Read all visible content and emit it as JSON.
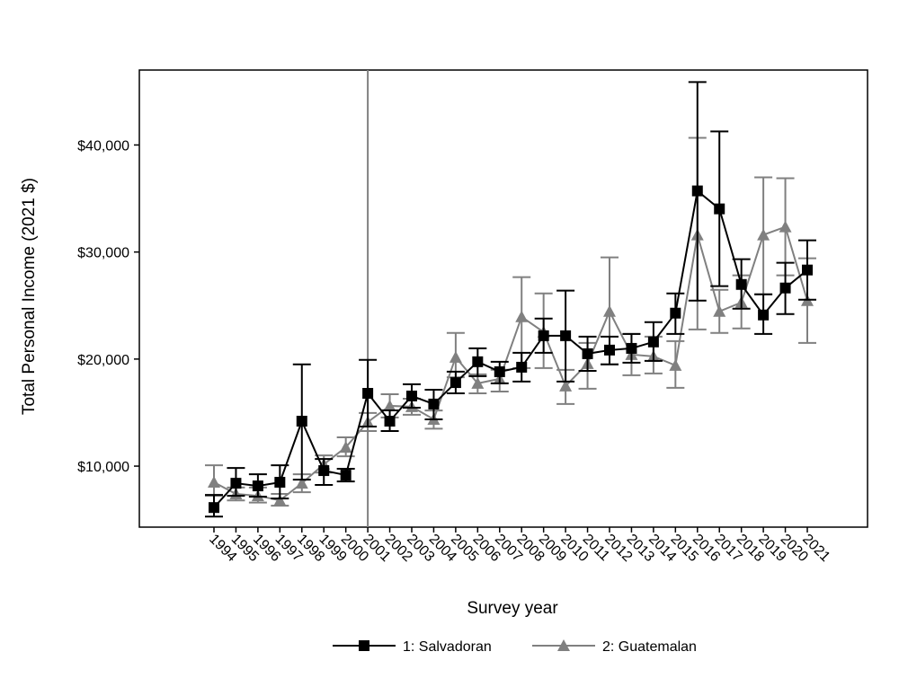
{
  "chart_data": {
    "type": "line",
    "title": "",
    "xlabel": "Survey year",
    "ylabel": "Total Personal Income (2021 $)",
    "x": [
      1994,
      1995,
      1996,
      1997,
      1998,
      1999,
      2000,
      2001,
      2002,
      2003,
      2004,
      2005,
      2006,
      2007,
      2008,
      2009,
      2010,
      2011,
      2012,
      2013,
      2014,
      2015,
      2016,
      2017,
      2018,
      2019,
      2020,
      2021
    ],
    "ylim": [
      4300,
      47000
    ],
    "yticks": [
      10000,
      20000,
      30000,
      40000
    ],
    "ytick_labels": [
      "$10,000",
      "$20,000",
      "$30,000",
      "$40,000"
    ],
    "grid": false,
    "reference_line_x": 2001,
    "legend_position": "bottom",
    "series": [
      {
        "name": "1: Salvadoran",
        "color": "#000000",
        "marker": "square",
        "values": [
          6130,
          8400,
          8150,
          8490,
          14200,
          9580,
          9160,
          16800,
          14200,
          16550,
          15800,
          17800,
          19750,
          18820,
          19240,
          22180,
          22180,
          20500,
          20840,
          21000,
          21600,
          24290,
          35710,
          34030,
          26970,
          24120,
          26640,
          28320
        ],
        "ci_low": [
          5290,
          7230,
          7140,
          6970,
          8740,
          8240,
          8570,
          13700,
          13280,
          15460,
          14370,
          16800,
          18400,
          17730,
          17900,
          20590,
          17900,
          18900,
          19500,
          19660,
          19830,
          22350,
          25460,
          26810,
          24710,
          22350,
          24200,
          25550
        ],
        "ci_high": [
          7310,
          9830,
          9240,
          10080,
          19500,
          10670,
          9750,
          19920,
          15210,
          17650,
          17140,
          18820,
          21000,
          19750,
          20590,
          23780,
          26390,
          22100,
          22100,
          22350,
          23450,
          26130,
          45880,
          41260,
          29330,
          26050,
          28990,
          31090
        ]
      },
      {
        "name": "2: Guatemalan",
        "color": "#808080",
        "marker": "triangle",
        "values": [
          8490,
          7400,
          7230,
          6800,
          8400,
          10170,
          11760,
          14120,
          15630,
          15550,
          14370,
          20170,
          17730,
          18150,
          23950,
          22520,
          17480,
          19580,
          24450,
          20420,
          20250,
          19410,
          31600,
          24450,
          25290,
          31600,
          32350,
          25460
        ],
        "ci_low": [
          7230,
          6800,
          6600,
          6300,
          7560,
          9400,
          10920,
          13280,
          14540,
          14800,
          13500,
          18300,
          16800,
          16970,
          19160,
          19160,
          15800,
          17230,
          19500,
          18490,
          18660,
          17310,
          22770,
          22440,
          22860,
          26050,
          27820,
          21510
        ],
        "ci_high": [
          10080,
          8000,
          8000,
          7400,
          9240,
          11000,
          12690,
          14960,
          16720,
          16300,
          15200,
          22440,
          18570,
          19000,
          27650,
          26130,
          18990,
          21510,
          29500,
          22350,
          22100,
          21680,
          40670,
          26470,
          27820,
          36970,
          36890,
          29410
        ]
      }
    ]
  }
}
